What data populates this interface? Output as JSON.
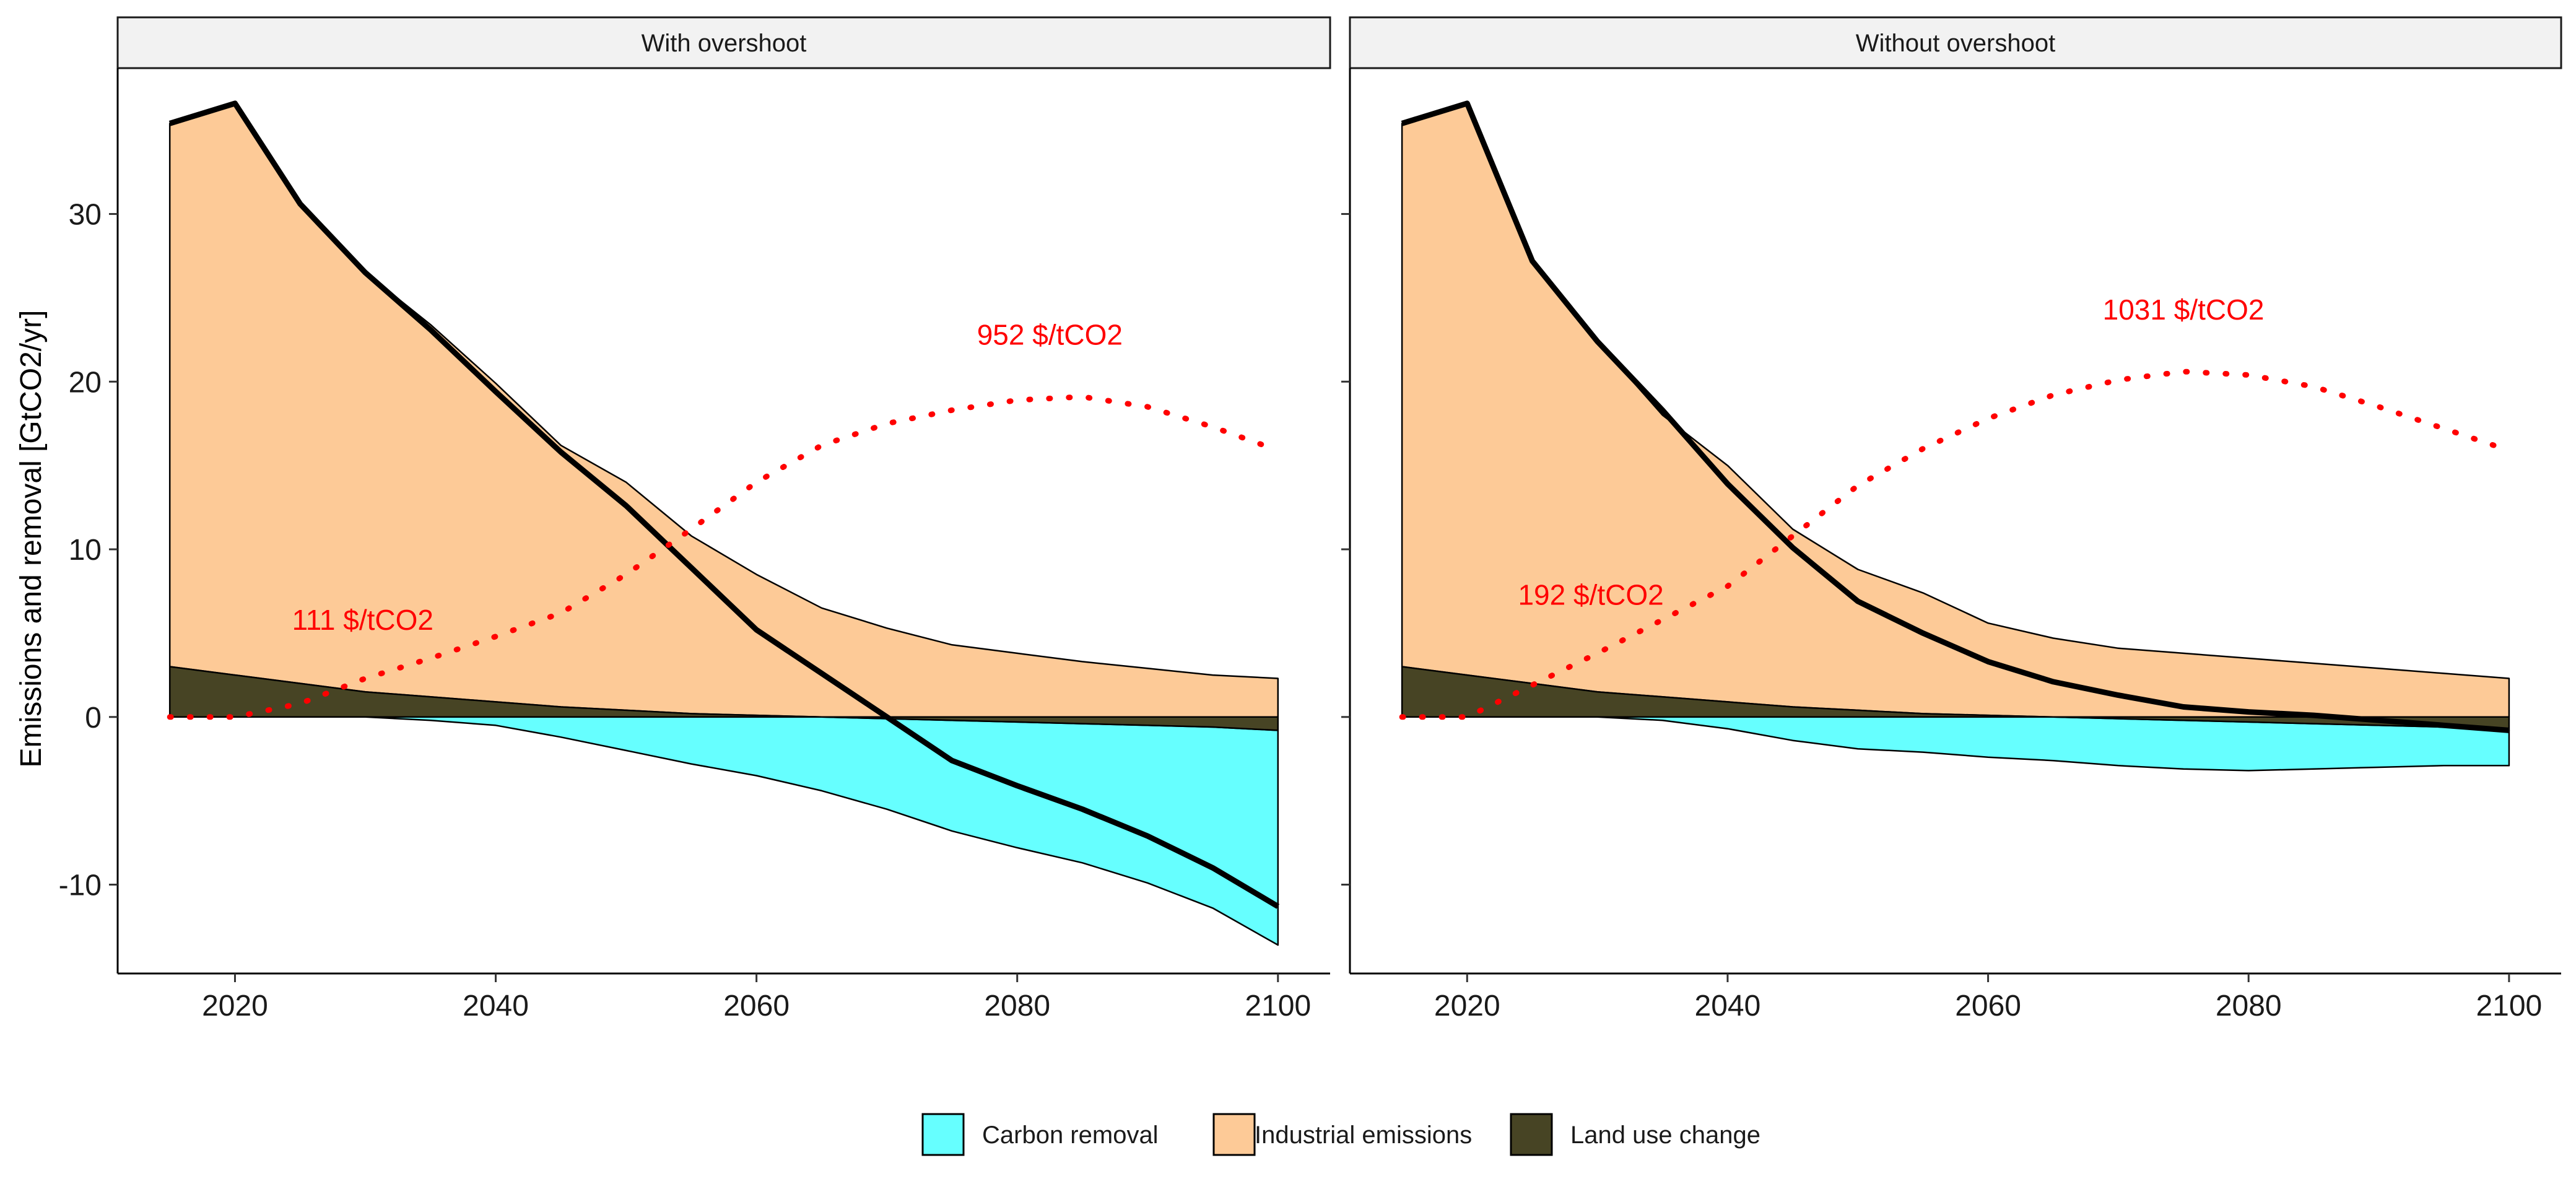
{
  "chart_data": {
    "type": "area",
    "ylabel": "Emissions and removal [GtCO2/yr]",
    "ylim": [
      -15.3,
      38.7
    ],
    "yticks": [
      -10,
      0,
      10,
      20,
      30
    ],
    "xlim": [
      2011,
      2104
    ],
    "xticks": [
      2020,
      2040,
      2060,
      2080,
      2100
    ],
    "grid": false,
    "legend_position": "bottom",
    "colors": {
      "Carbon removal": "#66ffff",
      "Industrial emissions": "#fdca97",
      "Land use change": "#474424",
      "net": "#000000",
      "price": "#ff0000"
    },
    "legend": [
      {
        "key": "carbon_removal",
        "label": "Carbon removal"
      },
      {
        "key": "industrial",
        "label": "Industrial emissions"
      },
      {
        "key": "land_use",
        "label": "Land use change"
      }
    ],
    "panels": [
      {
        "strip": "With overshoot",
        "x": [
          2015,
          2020,
          2025,
          2030,
          2035,
          2040,
          2045,
          2050,
          2055,
          2060,
          2065,
          2070,
          2075,
          2080,
          2085,
          2090,
          2095,
          2100
        ],
        "carbon_removal": [
          0,
          0,
          0,
          0,
          -0.2,
          -0.5,
          -1.2,
          -2.0,
          -2.8,
          -3.5,
          -4.4,
          -5.4,
          -6.6,
          -7.5,
          -8.3,
          -9.4,
          -10.8,
          -12.8
        ],
        "land_use": [
          3.0,
          2.5,
          2.0,
          1.5,
          1.2,
          0.9,
          0.6,
          0.4,
          0.2,
          0.1,
          0.0,
          -0.1,
          -0.2,
          -0.3,
          -0.4,
          -0.5,
          -0.6,
          -0.8
        ],
        "industrial": [
          32.4,
          34.1,
          28.6,
          25.0,
          22.2,
          19.0,
          15.6,
          13.6,
          10.6,
          8.4,
          6.5,
          5.3,
          4.3,
          3.8,
          3.3,
          2.9,
          2.5,
          2.3
        ],
        "net": [
          35.4,
          36.6,
          30.6,
          26.5,
          23.1,
          19.4,
          15.8,
          12.6,
          8.9,
          5.2,
          2.6,
          0.0,
          -2.6,
          -4.1,
          -5.5,
          -7.1,
          -9.0,
          -11.3
        ],
        "price_x": [
          2015,
          2020,
          2025,
          2030,
          2035,
          2040,
          2045,
          2050,
          2055,
          2060,
          2065,
          2070,
          2075,
          2080,
          2085,
          2090,
          2095,
          2100
        ],
        "price_y": [
          0,
          0,
          0.8,
          2.3,
          3.5,
          4.8,
          6.2,
          8.5,
          11.2,
          14.0,
          16.2,
          17.5,
          18.3,
          18.9,
          19.1,
          18.5,
          17.3,
          15.9
        ],
        "price_labels": [
          {
            "text": "111 $/tCO2",
            "x": 2029.8,
            "y": 5.2
          },
          {
            "text": "952 $/tCO2",
            "x": 2082.5,
            "y": 22.2
          }
        ]
      },
      {
        "strip": "Without overshoot",
        "x": [
          2015,
          2020,
          2025,
          2030,
          2035,
          2040,
          2045,
          2050,
          2055,
          2060,
          2065,
          2070,
          2075,
          2080,
          2085,
          2090,
          2095,
          2100
        ],
        "carbon_removal": [
          0,
          0,
          0,
          0,
          -0.2,
          -0.7,
          -1.4,
          -1.9,
          -2.1,
          -2.4,
          -2.6,
          -2.8,
          -2.9,
          -2.9,
          -2.7,
          -2.5,
          -2.3,
          -2.1
        ],
        "land_use": [
          3.0,
          2.5,
          2.0,
          1.5,
          1.2,
          0.9,
          0.6,
          0.4,
          0.2,
          0.1,
          0.0,
          -0.1,
          -0.2,
          -0.3,
          -0.4,
          -0.5,
          -0.6,
          -0.8
        ],
        "industrial": [
          32.4,
          34.1,
          25.2,
          20.9,
          16.8,
          14.1,
          10.6,
          8.4,
          7.2,
          5.5,
          4.7,
          4.1,
          3.8,
          3.5,
          3.2,
          2.9,
          2.6,
          2.3
        ],
        "net": [
          35.4,
          36.6,
          27.2,
          22.4,
          18.3,
          13.9,
          10.1,
          6.9,
          5.0,
          3.3,
          2.1,
          1.3,
          0.6,
          0.3,
          0.1,
          -0.2,
          -0.5,
          -0.8
        ],
        "price_x": [
          2015,
          2020,
          2025,
          2030,
          2035,
          2040,
          2045,
          2050,
          2055,
          2060,
          2065,
          2070,
          2075,
          2080,
          2085,
          2090,
          2095,
          2100
        ],
        "price_y": [
          0,
          0,
          1.9,
          3.8,
          5.8,
          7.8,
          10.8,
          13.8,
          16.0,
          17.8,
          19.2,
          20.1,
          20.6,
          20.4,
          19.7,
          18.5,
          17.2,
          15.9
        ],
        "price_labels": [
          {
            "text": "192 $/tCO2",
            "x": 2029.5,
            "y": 6.7
          },
          {
            "text": "1031 $/tCO2",
            "x": 2075.0,
            "y": 23.7
          }
        ]
      }
    ]
  }
}
